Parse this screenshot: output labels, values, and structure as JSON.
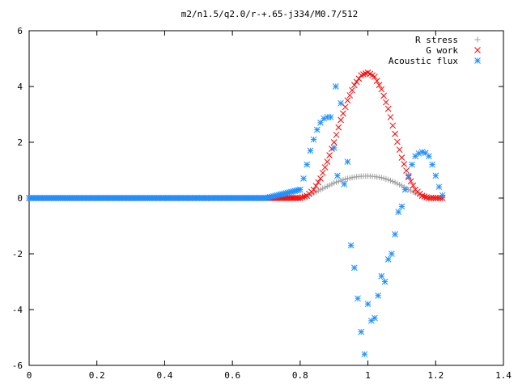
{
  "chart_data": {
    "type": "scatter",
    "title": "m2/n1.5/q2.0/r-+.65-j334/M0.7/512",
    "xlabel": "",
    "ylabel": "",
    "xlim": [
      0,
      1.4
    ],
    "ylim": [
      -6,
      6
    ],
    "x_ticks": [
      "0",
      "0.2",
      "0.4",
      "0.6",
      "0.8",
      "1",
      "1.2",
      "1.4"
    ],
    "y_ticks": [
      "-6",
      "-4",
      "-2",
      "0",
      "2",
      "4",
      "6"
    ],
    "grid": false,
    "legend_position": "top-right",
    "series": [
      {
        "name": "R stress",
        "marker": "plus",
        "color": "#a0a0a0",
        "x": [
          0.0,
          0.1,
          0.2,
          0.3,
          0.4,
          0.5,
          0.6,
          0.7,
          0.8,
          0.82,
          0.84,
          0.86,
          0.88,
          0.9,
          0.92,
          0.94,
          0.96,
          0.98,
          1.0,
          1.02,
          1.04,
          1.06,
          1.08,
          1.1,
          1.12,
          1.14,
          1.16,
          1.18,
          1.2,
          1.22
        ],
        "y": [
          0,
          0,
          0,
          0,
          0,
          0,
          0,
          0,
          0,
          0.07,
          0.18,
          0.3,
          0.42,
          0.54,
          0.63,
          0.7,
          0.75,
          0.78,
          0.79,
          0.77,
          0.73,
          0.66,
          0.56,
          0.44,
          0.3,
          0.18,
          0.08,
          0.02,
          0.0,
          0.0
        ]
      },
      {
        "name": "G work",
        "marker": "cross",
        "color": "#ff0000",
        "x": [
          0.0,
          0.1,
          0.2,
          0.3,
          0.4,
          0.5,
          0.6,
          0.7,
          0.8,
          0.82,
          0.84,
          0.86,
          0.88,
          0.9,
          0.92,
          0.94,
          0.96,
          0.98,
          1.0,
          1.02,
          1.04,
          1.06,
          1.08,
          1.1,
          1.12,
          1.14,
          1.16,
          1.18,
          1.2,
          1.22
        ],
        "y": [
          0,
          0,
          0,
          0,
          0,
          0,
          0,
          0,
          0,
          0.08,
          0.3,
          0.7,
          1.3,
          2.0,
          2.8,
          3.5,
          4.05,
          4.4,
          4.5,
          4.35,
          3.9,
          3.2,
          2.3,
          1.45,
          0.75,
          0.3,
          0.08,
          0.0,
          0.0,
          0.0
        ]
      },
      {
        "name": "Acoustic flux",
        "marker": "star",
        "color": "#1e90ff",
        "x": [
          0.0,
          0.1,
          0.2,
          0.3,
          0.4,
          0.5,
          0.6,
          0.7,
          0.8,
          0.81,
          0.82,
          0.83,
          0.84,
          0.85,
          0.86,
          0.87,
          0.88,
          0.89,
          0.9,
          0.905,
          0.91,
          0.92,
          0.93,
          0.94,
          0.95,
          0.96,
          0.97,
          0.98,
          0.99,
          1.0,
          1.01,
          1.02,
          1.03,
          1.04,
          1.05,
          1.06,
          1.07,
          1.08,
          1.09,
          1.1,
          1.11,
          1.12,
          1.13,
          1.14,
          1.15,
          1.16,
          1.17,
          1.18,
          1.19,
          1.2,
          1.21,
          1.22
        ],
        "y": [
          0,
          0,
          0,
          0,
          0,
          0,
          0,
          0,
          0.3,
          0.7,
          1.2,
          1.7,
          2.1,
          2.45,
          2.7,
          2.85,
          2.9,
          2.9,
          1.8,
          4.0,
          0.8,
          3.4,
          0.5,
          1.3,
          -1.7,
          -2.5,
          -3.6,
          -4.8,
          -5.6,
          -3.8,
          -4.4,
          -4.3,
          -3.5,
          -2.8,
          -3.0,
          -2.2,
          -2.0,
          -1.3,
          -0.5,
          -0.3,
          0.3,
          0.8,
          1.2,
          1.5,
          1.6,
          1.65,
          1.62,
          1.5,
          1.2,
          0.8,
          0.4,
          0.1
        ]
      }
    ]
  }
}
